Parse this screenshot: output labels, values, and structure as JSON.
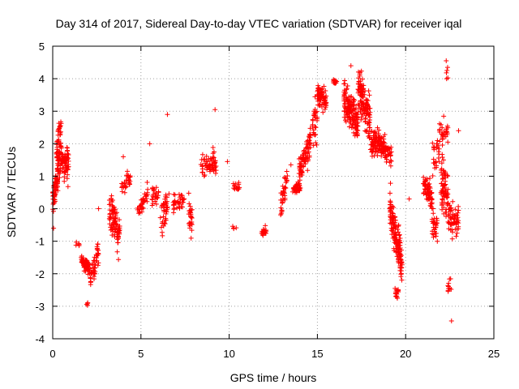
{
  "chart_data": {
    "type": "scatter",
    "title": "Day 314 of 2017, Sidereal Day-to-day VTEC variation (SDTVAR) for receiver iqal",
    "xlabel": "GPS time / hours",
    "ylabel": "SDTVAR / TECUs",
    "xlim": [
      0,
      25
    ],
    "ylim": [
      -4,
      5
    ],
    "xticks": [
      0,
      5,
      10,
      15,
      20,
      25
    ],
    "yticks": [
      -4,
      -3,
      -2,
      -1,
      0,
      1,
      2,
      3,
      4,
      5
    ],
    "grid": true,
    "marker": "+",
    "color": "#ff0000",
    "clusters": [
      {
        "x0": 0.0,
        "x1": 0.3,
        "yc": 0.6,
        "spread": 0.6,
        "yslope": 2.5,
        "n": 60
      },
      {
        "x0": 0.2,
        "x1": 0.9,
        "yc": 1.5,
        "spread": 0.8,
        "yslope": -0.5,
        "n": 120
      },
      {
        "x0": 0.3,
        "x1": 0.5,
        "yc": 2.5,
        "spread": 0.4,
        "yslope": 0,
        "n": 15
      },
      {
        "x0": 1.3,
        "x1": 1.5,
        "yc": -1.1,
        "spread": 0.1,
        "yslope": 0,
        "n": 5
      },
      {
        "x0": 1.6,
        "x1": 2.1,
        "yc": -1.7,
        "spread": 0.35,
        "yslope": -0.8,
        "n": 70
      },
      {
        "x0": 1.9,
        "x1": 2.0,
        "yc": -2.9,
        "spread": 0.1,
        "yslope": 0,
        "n": 4
      },
      {
        "x0": 2.1,
        "x1": 2.6,
        "yc": -1.8,
        "spread": 0.5,
        "yslope": 2.0,
        "n": 50
      },
      {
        "x0": 3.2,
        "x1": 3.8,
        "yc": -0.5,
        "spread": 0.8,
        "yslope": -1.5,
        "n": 90
      },
      {
        "x0": 3.9,
        "x1": 4.4,
        "yc": 0.8,
        "spread": 0.4,
        "yslope": 0.5,
        "n": 30
      },
      {
        "x0": 4.8,
        "x1": 5.4,
        "yc": 0.2,
        "spread": 0.5,
        "yslope": 1.0,
        "n": 35
      },
      {
        "x0": 5.6,
        "x1": 6.0,
        "yc": 0.4,
        "spread": 0.5,
        "yslope": 0,
        "n": 25
      },
      {
        "x0": 6.1,
        "x1": 6.6,
        "yc": 0.0,
        "spread": 0.7,
        "yslope": 1.5,
        "n": 40
      },
      {
        "x0": 6.8,
        "x1": 7.5,
        "yc": 0.2,
        "spread": 0.4,
        "yslope": 0,
        "n": 35
      },
      {
        "x0": 7.7,
        "x1": 7.9,
        "yc": -0.1,
        "spread": 1.0,
        "yslope": 0,
        "n": 25
      },
      {
        "x0": 8.4,
        "x1": 9.3,
        "yc": 1.4,
        "spread": 0.6,
        "yslope": 0,
        "n": 60
      },
      {
        "x0": 10.2,
        "x1": 10.6,
        "yc": 0.7,
        "spread": 0.2,
        "yslope": 0,
        "n": 15
      },
      {
        "x0": 10.2,
        "x1": 10.4,
        "yc": -0.6,
        "spread": 0.1,
        "yslope": 0,
        "n": 4
      },
      {
        "x0": 11.8,
        "x1": 12.1,
        "yc": -0.7,
        "spread": 0.2,
        "yslope": 0,
        "n": 20
      },
      {
        "x0": 12.9,
        "x1": 13.3,
        "yc": 0.5,
        "spread": 0.6,
        "yslope": 2.5,
        "n": 35
      },
      {
        "x0": 13.6,
        "x1": 14.0,
        "yc": 0.6,
        "spread": 0.2,
        "yslope": 0,
        "n": 40
      },
      {
        "x0": 13.9,
        "x1": 14.6,
        "yc": 1.5,
        "spread": 0.7,
        "yslope": 1.5,
        "n": 90
      },
      {
        "x0": 14.7,
        "x1": 15.0,
        "yc": 2.6,
        "spread": 1.0,
        "yslope": 0,
        "n": 30
      },
      {
        "x0": 15.0,
        "x1": 15.5,
        "yc": 3.4,
        "spread": 0.5,
        "yslope": -0.5,
        "n": 70
      },
      {
        "x0": 15.9,
        "x1": 16.1,
        "yc": 3.9,
        "spread": 0.1,
        "yslope": 0,
        "n": 12
      },
      {
        "x0": 16.5,
        "x1": 17.3,
        "yc": 3.0,
        "spread": 0.8,
        "yslope": -1.0,
        "n": 150
      },
      {
        "x0": 17.3,
        "x1": 18.0,
        "yc": 3.2,
        "spread": 1.0,
        "yslope": -1.5,
        "n": 130
      },
      {
        "x0": 18.0,
        "x1": 18.7,
        "yc": 2.0,
        "spread": 0.6,
        "yslope": 0,
        "n": 90
      },
      {
        "x0": 18.7,
        "x1": 19.2,
        "yc": 1.8,
        "spread": 0.5,
        "yslope": -1.0,
        "n": 50
      },
      {
        "x0": 19.1,
        "x1": 19.8,
        "yc": -0.8,
        "spread": 0.9,
        "yslope": -2.5,
        "n": 150
      },
      {
        "x0": 19.4,
        "x1": 19.6,
        "yc": -2.6,
        "spread": 0.3,
        "yslope": 0,
        "n": 15
      },
      {
        "x0": 21.0,
        "x1": 21.5,
        "yc": 0.5,
        "spread": 0.6,
        "yslope": -0.8,
        "n": 70
      },
      {
        "x0": 21.5,
        "x1": 21.8,
        "yc": -0.6,
        "spread": 0.7,
        "yslope": 0,
        "n": 30
      },
      {
        "x0": 21.5,
        "x1": 21.9,
        "yc": 1.6,
        "spread": 0.8,
        "yslope": 0,
        "n": 25
      },
      {
        "x0": 21.9,
        "x1": 22.4,
        "yc": 2.4,
        "spread": 0.6,
        "yslope": 0,
        "n": 30
      },
      {
        "x0": 22.0,
        "x1": 22.4,
        "yc": 0.5,
        "spread": 1.2,
        "yslope": -1.5,
        "n": 70
      },
      {
        "x0": 22.4,
        "x1": 23.0,
        "yc": -0.3,
        "spread": 0.7,
        "yslope": 0,
        "n": 60
      },
      {
        "x0": 22.3,
        "x1": 22.4,
        "yc": 4.2,
        "spread": 0.3,
        "yslope": 0,
        "n": 5
      },
      {
        "x0": 22.4,
        "x1": 22.6,
        "yc": -2.4,
        "spread": 0.5,
        "yslope": 0,
        "n": 10
      }
    ],
    "extra_points": [
      [
        0.05,
        -0.6
      ],
      [
        2.6,
        0.0
      ],
      [
        4.0,
        1.6
      ],
      [
        5.5,
        2.0
      ],
      [
        6.5,
        2.9
      ],
      [
        9.2,
        3.05
      ],
      [
        9.9,
        1.45
      ],
      [
        13.5,
        1.35
      ],
      [
        16.9,
        4.4
      ],
      [
        20.2,
        0.3
      ],
      [
        22.6,
        -3.45
      ],
      [
        23.0,
        2.4
      ],
      [
        22.3,
        4.55
      ]
    ]
  }
}
